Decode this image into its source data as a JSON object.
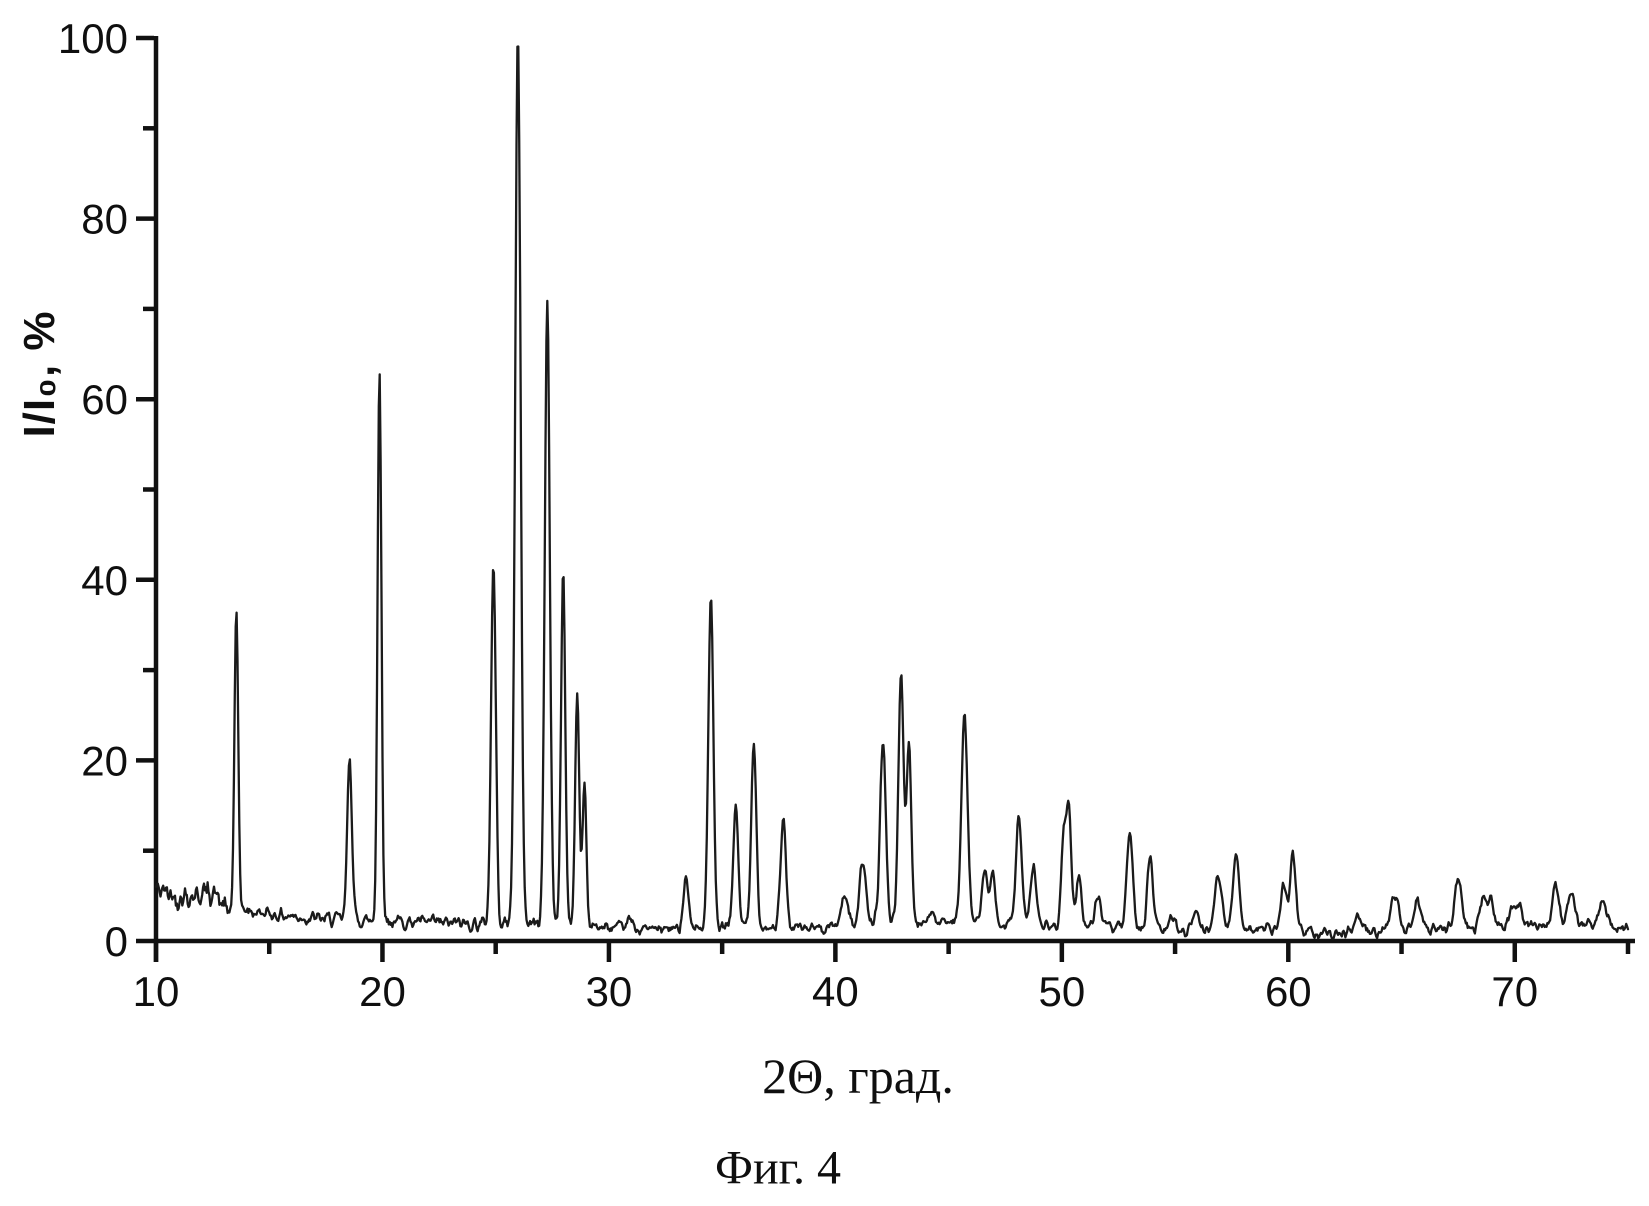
{
  "figure": {
    "caption": "Фиг. 4"
  },
  "chart_data": {
    "type": "line",
    "title": "",
    "xlabel": "2Θ, град.",
    "ylabel": "I/I₀, %",
    "series_name": "XRD diffraction trace",
    "xlim": [
      10,
      75
    ],
    "ylim": [
      0,
      100
    ],
    "grid": false,
    "legend": null,
    "x_major_ticks": [
      10,
      20,
      30,
      40,
      50,
      60,
      70
    ],
    "x_minor_ticks": [
      15,
      25,
      35,
      45,
      55,
      65,
      75
    ],
    "y_major_ticks": [
      0,
      20,
      40,
      60,
      80,
      100
    ],
    "y_minor_ticks": [
      10,
      30,
      50,
      70,
      90
    ],
    "line_color": "#1b1b1b",
    "axis_color": "#111111",
    "background": "#ffffff",
    "peaks_note": "each peak = [2theta_deg, intensity_pct_at_apex, fwhm_deg]",
    "peaks": [
      [
        13.55,
        36.0,
        0.2
      ],
      [
        18.55,
        20.3,
        0.24
      ],
      [
        19.87,
        63.0,
        0.2
      ],
      [
        24.9,
        41.7,
        0.25
      ],
      [
        25.98,
        100.0,
        0.28
      ],
      [
        27.28,
        71.0,
        0.26
      ],
      [
        27.98,
        41.0,
        0.22
      ],
      [
        28.6,
        26.8,
        0.22
      ],
      [
        28.92,
        17.5,
        0.2
      ],
      [
        30.9,
        2.3,
        0.3
      ],
      [
        33.4,
        7.2,
        0.28
      ],
      [
        34.5,
        38.0,
        0.26
      ],
      [
        35.6,
        14.9,
        0.26
      ],
      [
        36.4,
        22.0,
        0.26
      ],
      [
        37.7,
        13.2,
        0.28
      ],
      [
        40.4,
        5.0,
        0.35
      ],
      [
        41.2,
        9.0,
        0.3
      ],
      [
        42.1,
        22.0,
        0.3
      ],
      [
        42.9,
        29.0,
        0.28
      ],
      [
        43.25,
        21.5,
        0.24
      ],
      [
        44.2,
        3.0,
        0.3
      ],
      [
        45.7,
        25.5,
        0.32
      ],
      [
        46.6,
        8.0,
        0.28
      ],
      [
        46.95,
        7.0,
        0.26
      ],
      [
        48.1,
        13.6,
        0.3
      ],
      [
        48.75,
        8.0,
        0.3
      ],
      [
        50.07,
        11.0,
        0.22
      ],
      [
        50.3,
        15.1,
        0.26
      ],
      [
        50.75,
        7.3,
        0.28
      ],
      [
        51.6,
        5.2,
        0.3
      ],
      [
        53.0,
        11.3,
        0.32
      ],
      [
        53.9,
        9.2,
        0.3
      ],
      [
        54.9,
        2.6,
        0.3
      ],
      [
        55.9,
        3.4,
        0.3
      ],
      [
        56.9,
        7.6,
        0.35
      ],
      [
        57.7,
        9.8,
        0.32
      ],
      [
        59.8,
        6.0,
        0.3
      ],
      [
        60.2,
        9.5,
        0.3
      ],
      [
        63.1,
        2.6,
        0.4
      ],
      [
        64.7,
        5.0,
        0.4
      ],
      [
        65.7,
        4.8,
        0.35
      ],
      [
        67.5,
        7.4,
        0.35
      ],
      [
        68.6,
        5.0,
        0.33
      ],
      [
        68.95,
        4.6,
        0.3
      ],
      [
        69.9,
        3.8,
        0.3
      ],
      [
        70.2,
        4.0,
        0.28
      ],
      [
        71.8,
        6.5,
        0.35
      ],
      [
        72.5,
        5.4,
        0.35
      ],
      [
        73.9,
        4.2,
        0.4
      ]
    ],
    "baseline_note": "piecewise-linear background [2theta_deg, intensity_pct]",
    "baseline": [
      [
        10,
        5.8
      ],
      [
        11,
        4.9
      ],
      [
        12,
        5.2
      ],
      [
        12.5,
        5.6
      ],
      [
        13.1,
        3.3
      ],
      [
        14,
        3.3
      ],
      [
        15,
        3.0
      ],
      [
        17,
        2.5
      ],
      [
        20,
        2.2
      ],
      [
        24,
        1.9
      ],
      [
        28,
        2.0
      ],
      [
        30,
        1.4
      ],
      [
        33,
        1.3
      ],
      [
        36,
        1.6
      ],
      [
        39,
        1.4
      ],
      [
        41,
        2.0
      ],
      [
        44,
        2.0
      ],
      [
        47,
        2.0
      ],
      [
        49,
        1.7
      ],
      [
        52,
        1.5
      ],
      [
        55,
        1.2
      ],
      [
        58,
        1.4
      ],
      [
        61,
        1.1
      ],
      [
        63,
        0.9
      ],
      [
        66,
        1.3
      ],
      [
        69,
        1.5
      ],
      [
        71,
        1.6
      ],
      [
        73,
        1.8
      ],
      [
        75,
        1.6
      ]
    ],
    "noise_amplitude_pct": 0.55
  }
}
